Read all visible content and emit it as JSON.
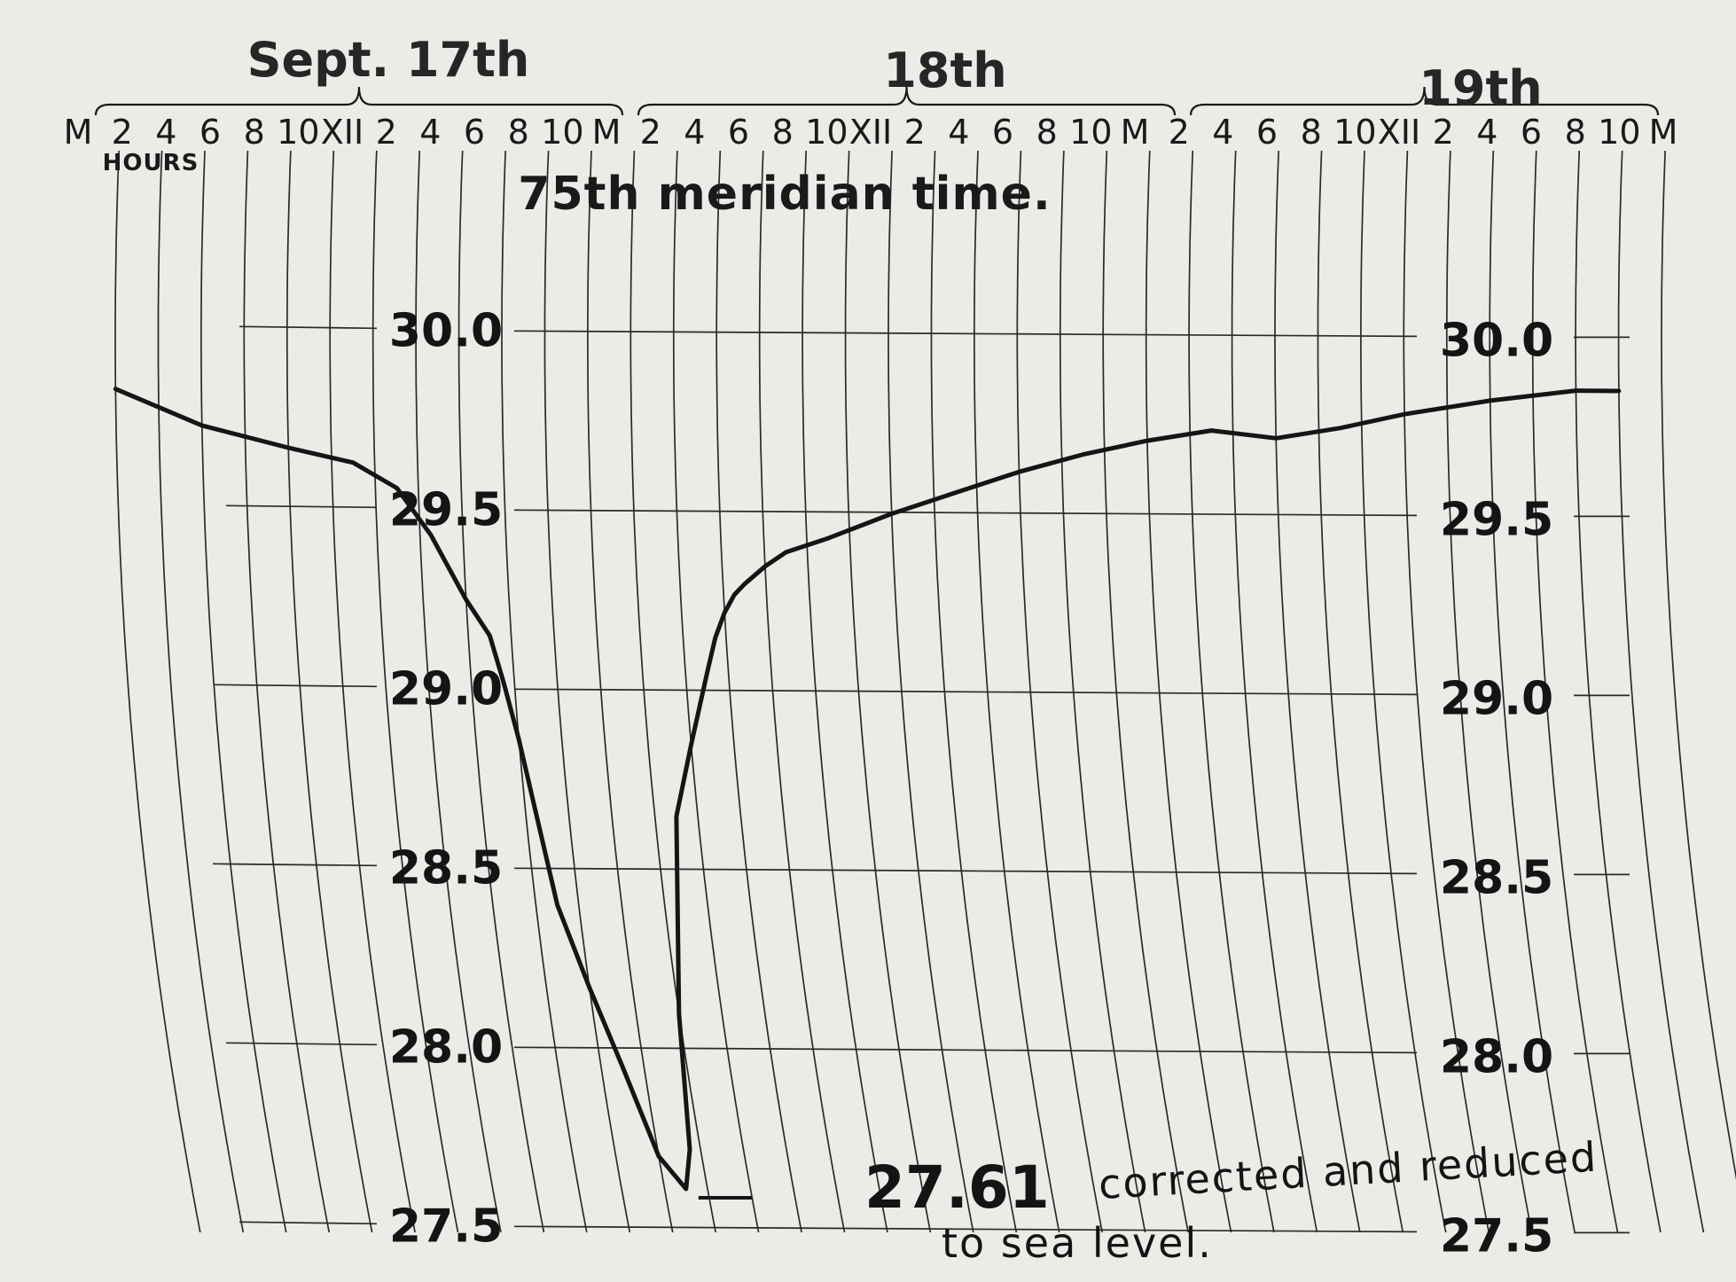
{
  "chart_data": {
    "type": "line",
    "title": "",
    "days": [
      "Sept. 17th",
      "18th",
      "19th"
    ],
    "hour_labels": [
      "M",
      "2",
      "4",
      "6",
      "8",
      "10",
      "XII",
      "2",
      "4",
      "6",
      "8",
      "10",
      "M",
      "2",
      "4",
      "6",
      "8",
      "10",
      "XII",
      "2",
      "4",
      "6",
      "8",
      "10",
      "M",
      "2",
      "4",
      "6",
      "8",
      "10",
      "XII",
      "2",
      "4",
      "6",
      "8",
      "10",
      "M"
    ],
    "x_unit_label": "HOURS",
    "xlabel": "75th meridian time.",
    "ylabel": "",
    "y_ticks": [
      "27.5",
      "28.0",
      "28.5",
      "29.0",
      "29.5",
      "30.0"
    ],
    "ylim": [
      27.5,
      30.0
    ],
    "xlim": [
      0,
      72
    ],
    "x_unit": "hours from midnight Sept. 17",
    "grid": true,
    "series": [
      {
        "x": [
          0,
          4,
          8,
          11,
          13,
          14.5,
          16,
          17,
          17.5,
          18,
          19,
          20,
          21,
          22,
          23,
          23.5,
          24,
          25,
          26,
          27,
          27.5,
          28,
          28.5,
          29,
          30,
          31,
          33,
          36,
          39,
          42,
          45,
          48,
          51,
          54,
          57,
          60,
          64,
          68,
          70
        ],
        "y": [
          29.83,
          29.73,
          29.67,
          29.63,
          29.56,
          29.43,
          29.25,
          29.15,
          29.02,
          28.86,
          28.4,
          28.17,
          27.95,
          27.7,
          27.61,
          27.72,
          28.1,
          28.65,
          28.85,
          29.05,
          29.15,
          29.22,
          29.27,
          29.3,
          29.35,
          29.39,
          29.43,
          29.5,
          29.56,
          29.62,
          29.67,
          29.71,
          29.74,
          29.72,
          29.75,
          29.79,
          29.83,
          29.86,
          29.86
        ]
      }
    ],
    "annotation": {
      "value": "27.61",
      "text_line1": "corrected and reduced",
      "text_line2": "to sea level."
    }
  }
}
